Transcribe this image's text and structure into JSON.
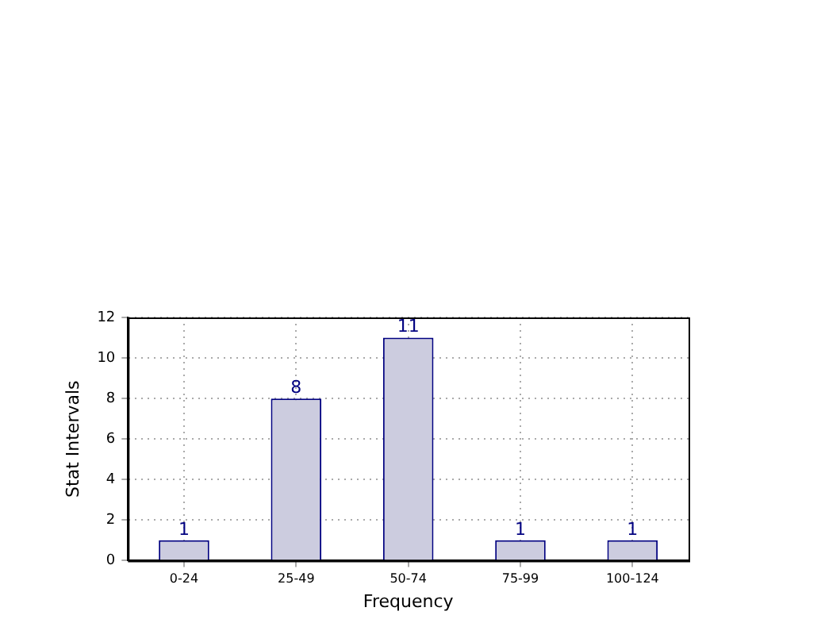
{
  "chart_data": {
    "type": "bar",
    "xlabel": "Frequency",
    "ylabel": "Stat Intervals",
    "categories": [
      "0-24",
      "25-49",
      "50-74",
      "75-99",
      "100-124"
    ],
    "values": [
      1,
      8,
      11,
      1,
      1
    ],
    "color": "#ccccdf",
    "ylim": [
      0,
      12
    ],
    "yticks": [
      0,
      2,
      4,
      6,
      8,
      10,
      12
    ],
    "grid": true,
    "data_labels": true,
    "legend": false
  }
}
